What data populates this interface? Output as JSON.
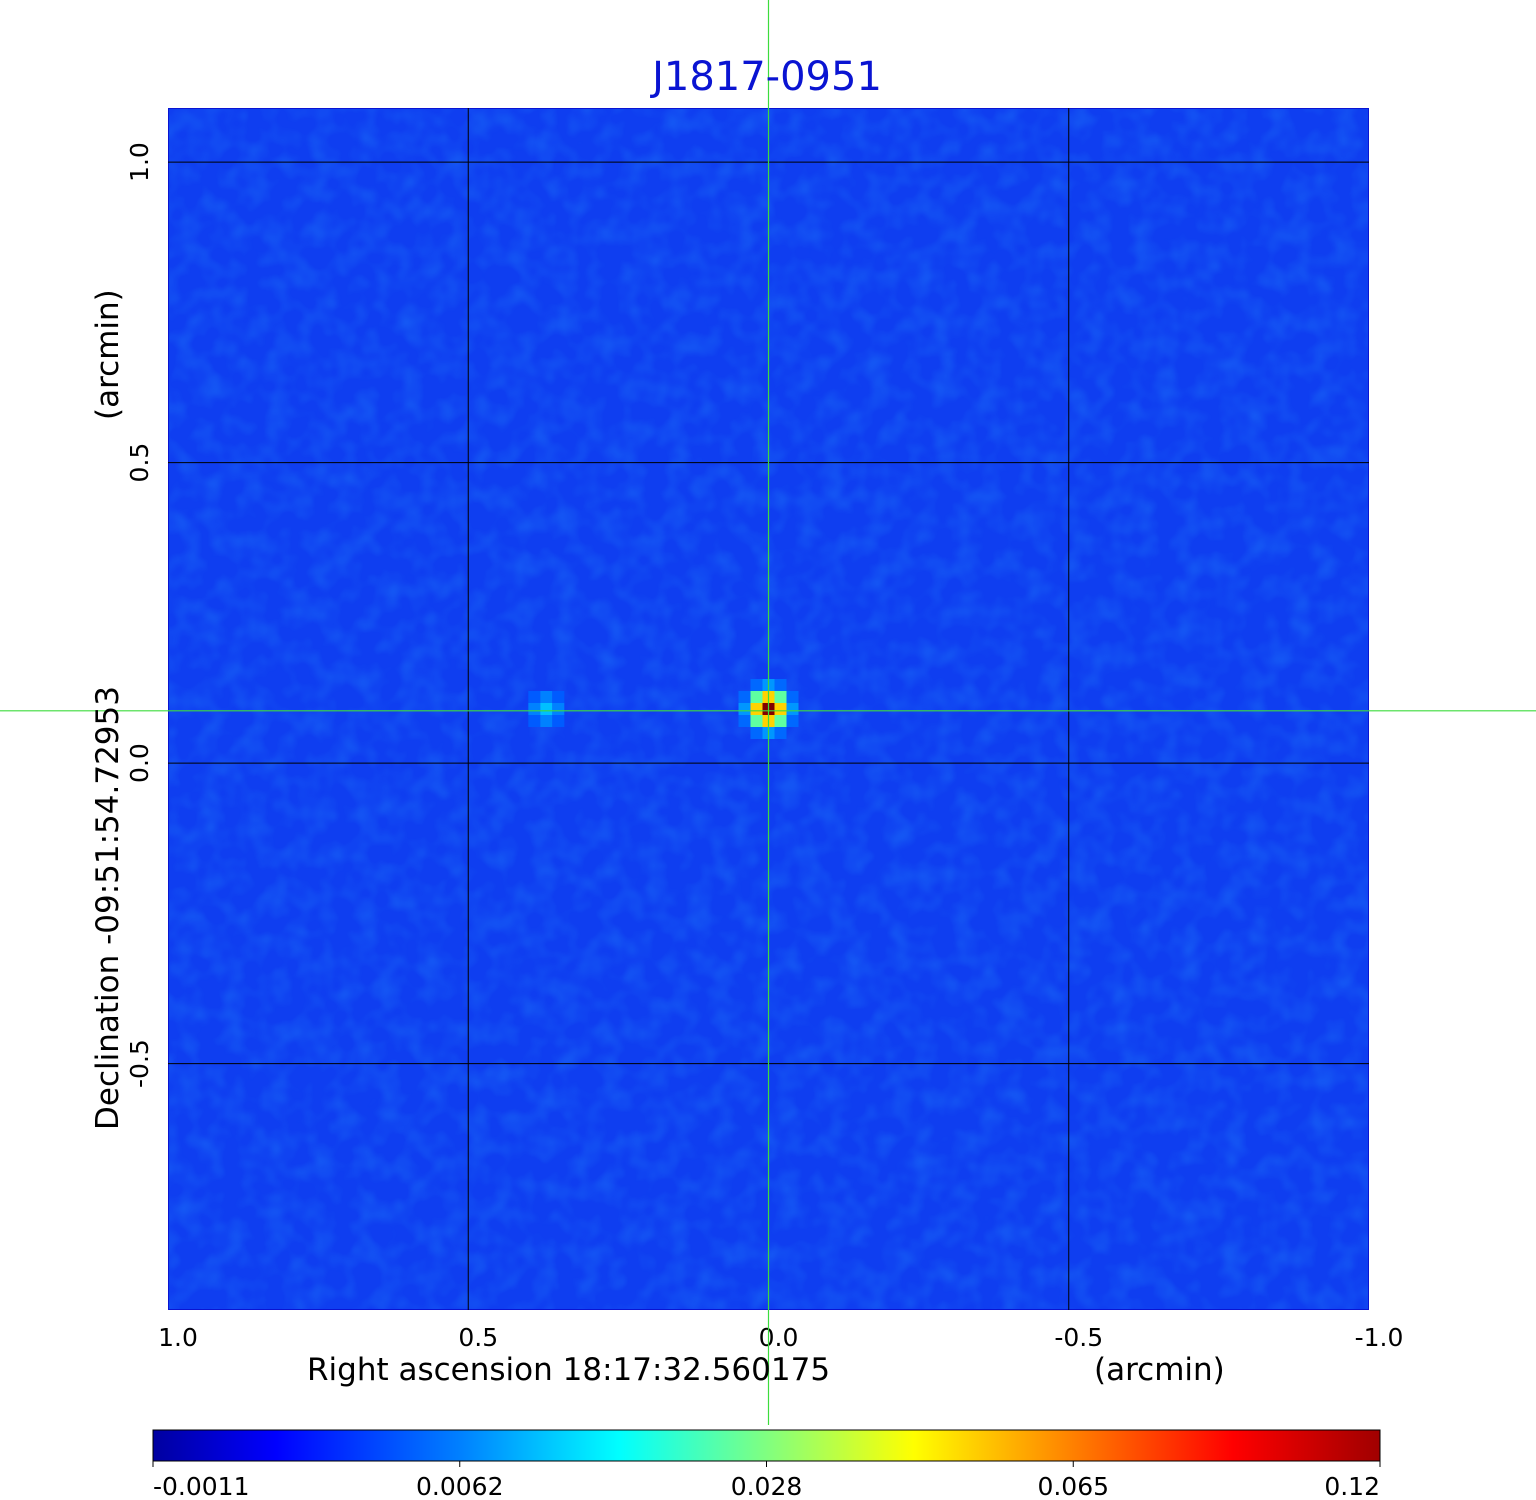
{
  "chart_data": {
    "type": "heatmap",
    "title": "J1817-0951",
    "title_color": "#0a14d2",
    "crosshair_color": "#3ddc3d",
    "grid_color": "#000000",
    "background_color": "#0f3ef0",
    "x_axis": {
      "label": "Right ascension  18:17:32.560175",
      "unit": "(arcmin)",
      "range": [
        1.0,
        -1.0
      ],
      "ticks": [
        {
          "value": 1.0,
          "label": "1.0"
        },
        {
          "value": 0.5,
          "label": "0.5"
        },
        {
          "value": 0.0,
          "label": "0.0"
        },
        {
          "value": -0.5,
          "label": "-0.5"
        },
        {
          "value": -1.0,
          "label": "-1.0"
        }
      ],
      "grid_values": [
        0.5,
        0.0,
        -0.5
      ]
    },
    "y_axis": {
      "label": "Declination  -09:51:54.72953",
      "unit": "(arcmin)",
      "range": [
        -0.91,
        1.09
      ],
      "ticks": [
        {
          "value": 1.0,
          "label": "1.0"
        },
        {
          "value": 0.5,
          "label": "0.5"
        },
        {
          "value": 0.0,
          "label": "0.0"
        },
        {
          "value": -0.5,
          "label": "-0.5"
        }
      ],
      "grid_values": [
        1.0,
        0.5,
        0.0,
        -0.5
      ]
    },
    "crosshair": {
      "x": 0.0,
      "y": 0.087
    },
    "sources": [
      {
        "name": "",
        "x": 0.0,
        "y": 0.09,
        "peak": 0.12
      },
      {
        "name": "",
        "x": 0.37,
        "y": 0.09,
        "peak": 0.022
      }
    ],
    "colorbar": {
      "min": -0.0011,
      "max": 0.12,
      "colormap": "jet",
      "ticks": [
        {
          "fraction": 0.0,
          "label": "-0.0011"
        },
        {
          "fraction": 0.25,
          "label": "0.0062"
        },
        {
          "fraction": 0.5,
          "label": "0.028"
        },
        {
          "fraction": 0.75,
          "label": "0.065"
        },
        {
          "fraction": 1.0,
          "label": "0.12"
        }
      ]
    }
  }
}
